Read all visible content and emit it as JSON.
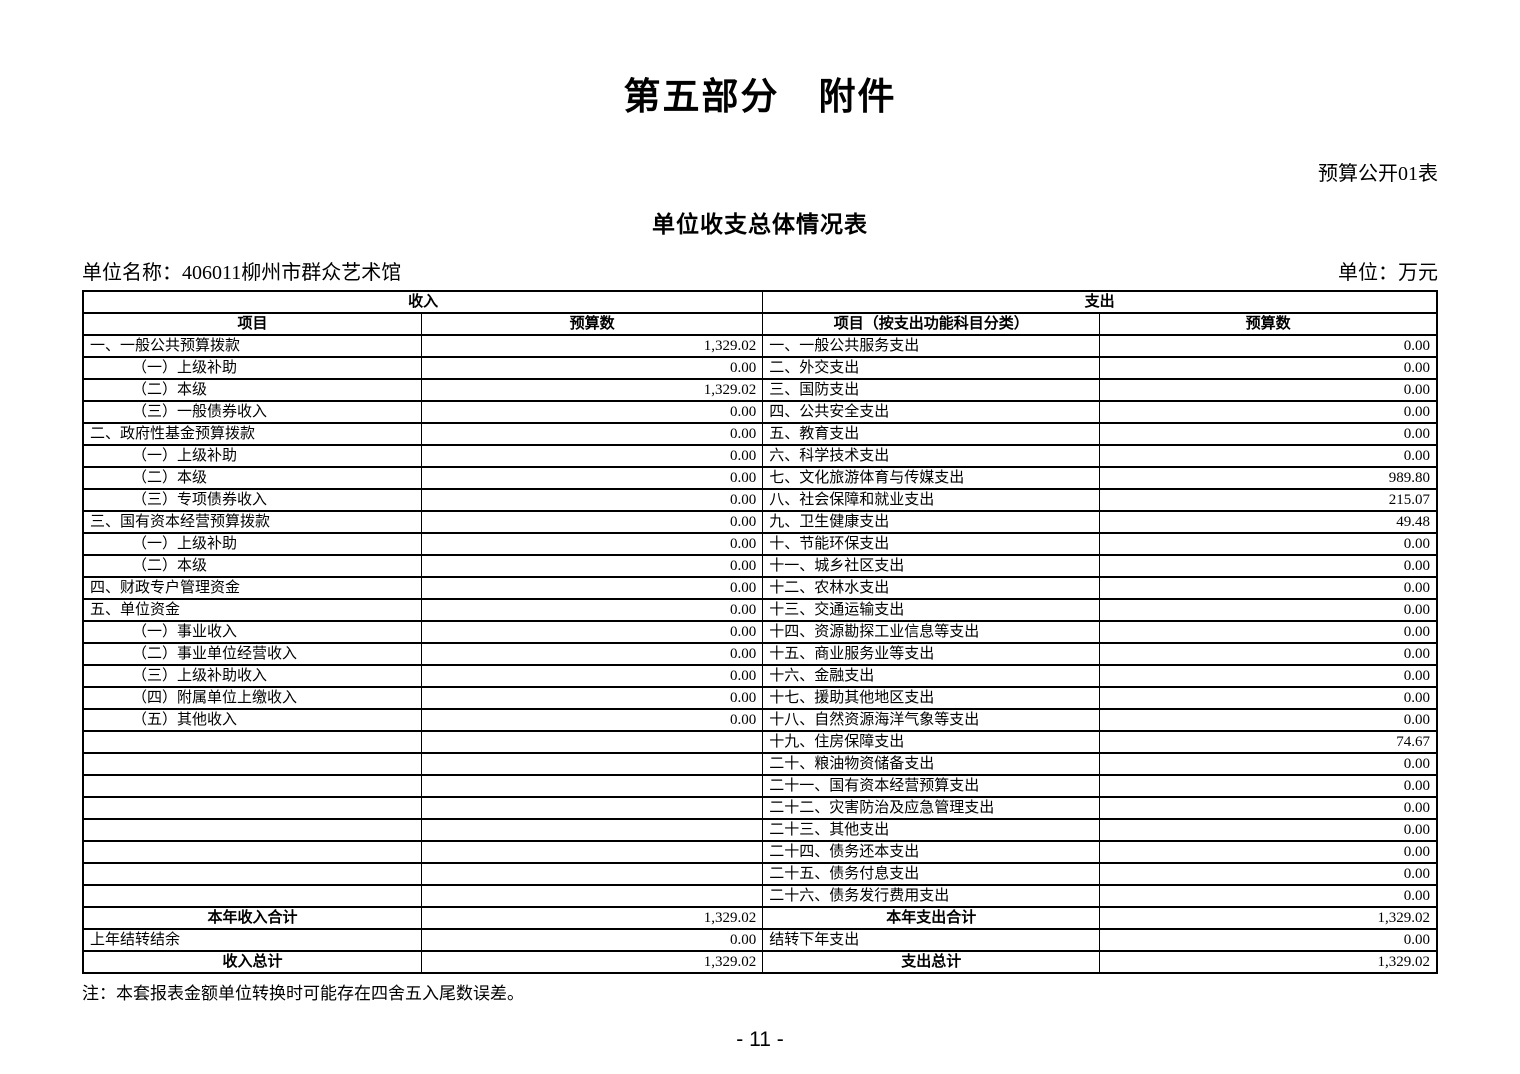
{
  "page": {
    "title": "第五部分　附件",
    "sheet_label": "预算公开01表",
    "subtitle": "单位收支总体情况表",
    "unit_name": "单位名称：406011柳州市群众艺术馆",
    "unit": "单位：万元",
    "note": "注：本套报表金额单位转换时可能存在四舍五入尾数误差。",
    "page_number": "- 11 -"
  },
  "table": {
    "income_header": "收入",
    "expense_header": "支出",
    "income_item_col": "项目",
    "income_value_col": "预算数",
    "expense_item_col": "项目（按支出功能科目分类）",
    "expense_value_col": "预算数",
    "rows": [
      {
        "income_item": "一、一般公共预算拨款",
        "income_value": "1,329.02",
        "expense_item": "一、一般公共服务支出",
        "expense_value": "0.00",
        "indent": false
      },
      {
        "income_item": "（一）上级补助",
        "income_value": "0.00",
        "expense_item": "二、外交支出",
        "expense_value": "0.00",
        "indent": true
      },
      {
        "income_item": "（二）本级",
        "income_value": "1,329.02",
        "expense_item": "三、国防支出",
        "expense_value": "0.00",
        "indent": true
      },
      {
        "income_item": "（三）一般债券收入",
        "income_value": "0.00",
        "expense_item": "四、公共安全支出",
        "expense_value": "0.00",
        "indent": true
      },
      {
        "income_item": "二、政府性基金预算拨款",
        "income_value": "0.00",
        "expense_item": "五、教育支出",
        "expense_value": "0.00",
        "indent": false
      },
      {
        "income_item": "（一）上级补助",
        "income_value": "0.00",
        "expense_item": "六、科学技术支出",
        "expense_value": "0.00",
        "indent": true
      },
      {
        "income_item": "（二）本级",
        "income_value": "0.00",
        "expense_item": "七、文化旅游体育与传媒支出",
        "expense_value": "989.80",
        "indent": true
      },
      {
        "income_item": "（三）专项债券收入",
        "income_value": "0.00",
        "expense_item": "八、社会保障和就业支出",
        "expense_value": "215.07",
        "indent": true
      },
      {
        "income_item": "三、国有资本经营预算拨款",
        "income_value": "0.00",
        "expense_item": "九、卫生健康支出",
        "expense_value": "49.48",
        "indent": false
      },
      {
        "income_item": "（一）上级补助",
        "income_value": "0.00",
        "expense_item": "十、节能环保支出",
        "expense_value": "0.00",
        "indent": true
      },
      {
        "income_item": "（二）本级",
        "income_value": "0.00",
        "expense_item": "十一、城乡社区支出",
        "expense_value": "0.00",
        "indent": true
      },
      {
        "income_item": "四、财政专户管理资金",
        "income_value": "0.00",
        "expense_item": "十二、农林水支出",
        "expense_value": "0.00",
        "indent": false
      },
      {
        "income_item": "五、单位资金",
        "income_value": "0.00",
        "expense_item": "十三、交通运输支出",
        "expense_value": "0.00",
        "indent": false
      },
      {
        "income_item": "（一）事业收入",
        "income_value": "0.00",
        "expense_item": "十四、资源勘探工业信息等支出",
        "expense_value": "0.00",
        "indent": true
      },
      {
        "income_item": "（二）事业单位经营收入",
        "income_value": "0.00",
        "expense_item": "十五、商业服务业等支出",
        "expense_value": "0.00",
        "indent": true
      },
      {
        "income_item": "（三）上级补助收入",
        "income_value": "0.00",
        "expense_item": "十六、金融支出",
        "expense_value": "0.00",
        "indent": true
      },
      {
        "income_item": "（四）附属单位上缴收入",
        "income_value": "0.00",
        "expense_item": "十七、援助其他地区支出",
        "expense_value": "0.00",
        "indent": true
      },
      {
        "income_item": "（五）其他收入",
        "income_value": "0.00",
        "expense_item": "十八、自然资源海洋气象等支出",
        "expense_value": "0.00",
        "indent": true
      },
      {
        "income_item": "",
        "income_value": "",
        "expense_item": "十九、住房保障支出",
        "expense_value": "74.67",
        "indent": false
      },
      {
        "income_item": "",
        "income_value": "",
        "expense_item": "二十、粮油物资储备支出",
        "expense_value": "0.00",
        "indent": false
      },
      {
        "income_item": "",
        "income_value": "",
        "expense_item": "二十一、国有资本经营预算支出",
        "expense_value": "0.00",
        "indent": false
      },
      {
        "income_item": "",
        "income_value": "",
        "expense_item": "二十二、灾害防治及应急管理支出",
        "expense_value": "0.00",
        "indent": false
      },
      {
        "income_item": "",
        "income_value": "",
        "expense_item": "二十三、其他支出",
        "expense_value": "0.00",
        "indent": false
      },
      {
        "income_item": "",
        "income_value": "",
        "expense_item": "二十四、债务还本支出",
        "expense_value": "0.00",
        "indent": false
      },
      {
        "income_item": "",
        "income_value": "",
        "expense_item": "二十五、债务付息支出",
        "expense_value": "0.00",
        "indent": false
      },
      {
        "income_item": "",
        "income_value": "",
        "expense_item": "二十六、债务发行费用支出",
        "expense_value": "0.00",
        "indent": false
      }
    ],
    "totals": [
      {
        "income_item": "本年收入合计",
        "income_value": "1,329.02",
        "expense_item": "本年支出合计",
        "expense_value": "1,329.02",
        "bold": true
      },
      {
        "income_item": "上年结转结余",
        "income_value": "0.00",
        "expense_item": "结转下年支出",
        "expense_value": "0.00",
        "bold": false
      },
      {
        "income_item": "收入总计",
        "income_value": "1,329.02",
        "expense_item": "支出总计",
        "expense_value": "1,329.02",
        "bold": true
      }
    ]
  }
}
